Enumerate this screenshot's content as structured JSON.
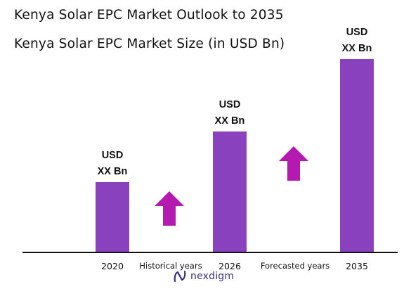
{
  "header": {
    "title": "Kenya Solar EPC Market Outlook to 2035",
    "subtitle": "Kenya Solar EPC Market Size (in USD Bn)"
  },
  "chart_data": {
    "type": "bar",
    "categories": [
      "2020",
      "2026",
      "2035"
    ],
    "values": [
      100,
      172,
      275
    ],
    "value_note": "relative heights only; no axis or values are printed",
    "data_labels": [
      [
        "USD",
        "XX Bn"
      ],
      [
        "USD",
        "XX Bn"
      ],
      [
        "USD",
        "XX Bn"
      ]
    ],
    "period_labels": [
      "Historical years",
      "Forecasted years"
    ],
    "grid": false,
    "legend": "none",
    "colors": {
      "bar": "#8a41be",
      "arrow": "#b51ab0",
      "axis": "#111111"
    }
  },
  "brand": {
    "name": "nexdigm",
    "color": "#3a2f7a",
    "icon": "nexdigm-logo-icon"
  }
}
